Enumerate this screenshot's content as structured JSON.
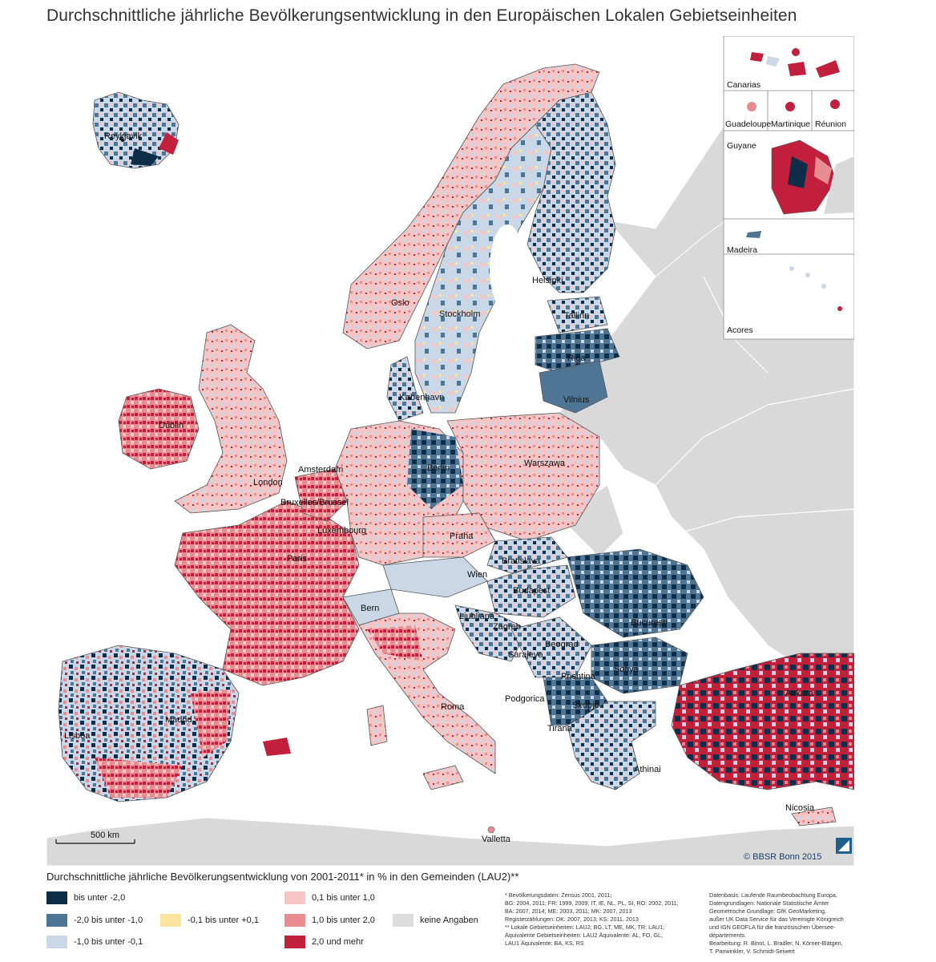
{
  "title": "Durchschnittliche jährliche Bevölkerungsentwicklung in den Europäischen Lokalen Gebietseinheiten",
  "colors": {
    "sea": "#ffffff",
    "non_eu_land": "#d9d9d9",
    "border": "#555555"
  },
  "cities": [
    "Reykjavik",
    "Oslo",
    "Stockholm",
    "Helsinki",
    "Tallinn",
    "Riga",
    "Vilnius",
    "København",
    "Dublin",
    "London",
    "Amsterdam",
    "Bruxelles/Brussel",
    "Luxembourg",
    "Paris",
    "Berlin",
    "Warszawa",
    "Praha",
    "Bratislava",
    "Wien",
    "Budapest",
    "Bern",
    "Ljubljana",
    "Zagreb",
    "București",
    "Beograd",
    "Sarajevo",
    "Sofiya",
    "Prishtina",
    "Podgorica",
    "Skopje",
    "Tirana",
    "Roma",
    "Madrid",
    "Lisboa",
    "Athinai",
    "Ankara",
    "Nicosia",
    "Valletta"
  ],
  "insets": {
    "canarias": "Canarias",
    "guadeloupe": "Guadeloupe",
    "martinique": "Martinique",
    "reunion": "Réunion",
    "guyane": "Guyane",
    "madeira": "Madeira",
    "acores": "Acores"
  },
  "scale_bar": "500 km",
  "credit": "© BBSR Bonn 2015",
  "legend": {
    "title": "Durchschnittliche jährliche Bevölkerungsentwicklung von 2001-2011* in % in den Gemeinden (LAU2)**",
    "classes": [
      {
        "label": "bis unter -2,0",
        "color": "#0e2d48"
      },
      {
        "label": "-2,0 bis unter -1,0",
        "color": "#4f7594"
      },
      {
        "label": "-1,0 bis unter -0,1",
        "color": "#c9d7e7"
      },
      {
        "label": "-0,1 bis unter +0,1",
        "color": "#fbe3a0"
      },
      {
        "label": "0,1 bis unter 1,0",
        "color": "#f6c5c4"
      },
      {
        "label": "1,0 bis unter 2,0",
        "color": "#e88c92"
      },
      {
        "label": "2,0 und mehr",
        "color": "#c21f3d"
      },
      {
        "label": "keine Angaben",
        "color": "#dcdcdc"
      }
    ]
  },
  "footnotes": [
    "*  Bevölkerungsdaten: Zensus 2001, 2011;",
    "   BG: 2004, 2011; FR: 1999, 2009; IT, IE, NL, PL, SI, RO: 2002, 2011;",
    "   BA: 2007, 2014; ME: 2003, 2011; MK: 2007, 2013",
    "   Registerzählungen: DK: 2007, 2013; KS: 2011, 2013",
    "** Lokale Gebietseinheiten: LAU2; BG, LT, ME, MK, TR: LAU1;",
    "   Äquivalente Gebietseinheiten: LAU2 Äquivalente: AL, FO, GL;",
    "   LAU1 Äquivalente: BA, KS, RS"
  ],
  "sources": [
    "Datenbasis: Laufende Raumbeobachtung Europa,",
    "Datengrundlagen: Nationale Statistische Ämter",
    "Geometrische Grundlage: GfK GeoMarketing,",
    "außer UK Data Service für das Vereinigte Königreich",
    "und IGN GEOFLA für die französischen Übersee-",
    "départements.",
    "Bearbeitung: R. Binot, L. Bradler, N. Körner-Blätgen,",
    "T. Panwinkler, V. Schmidt-Seiwert"
  ]
}
